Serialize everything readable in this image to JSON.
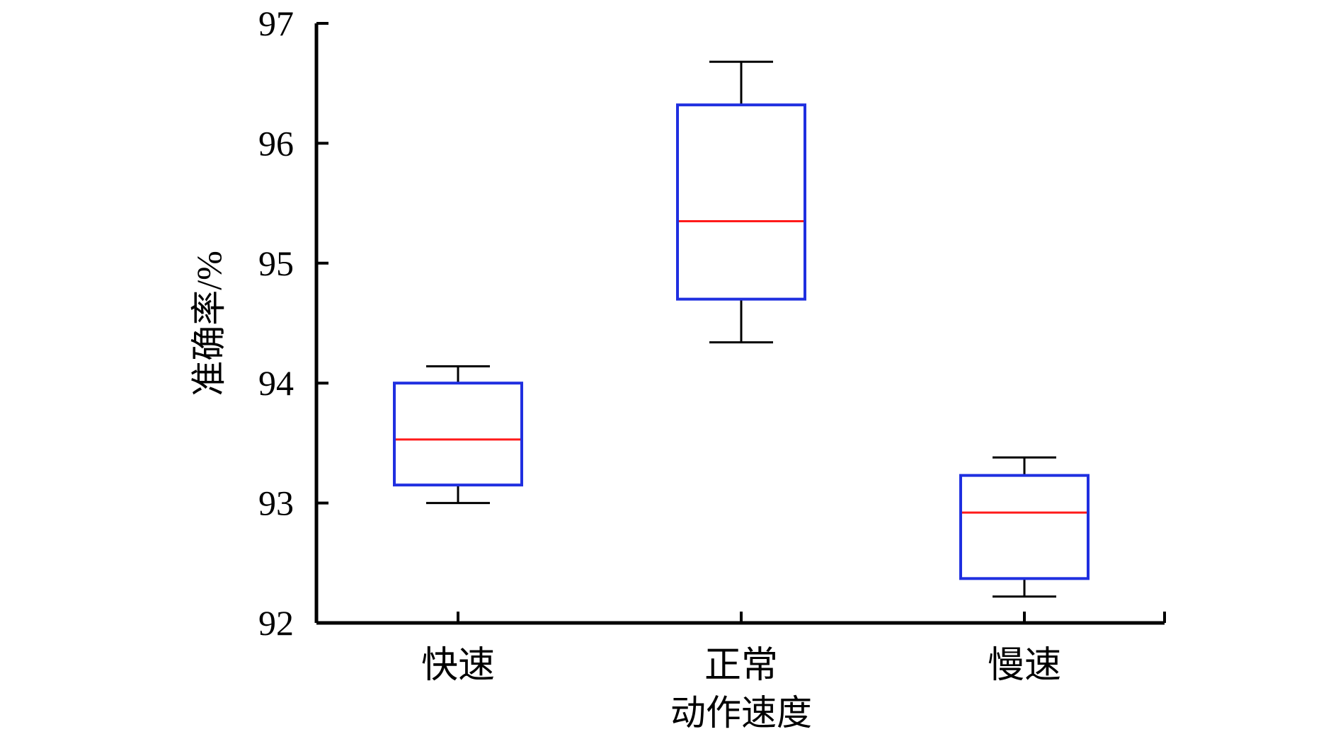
{
  "chart_data": {
    "type": "box",
    "xlabel": "动作速度",
    "ylabel": "准确率/%",
    "ylim": [
      92,
      97
    ],
    "yticks": [
      92,
      93,
      94,
      95,
      96,
      97
    ],
    "categories": [
      "快速",
      "正常",
      "慢速"
    ],
    "boxes": [
      {
        "category": "快速",
        "whisker_low": 93.0,
        "q1": 93.15,
        "median": 93.53,
        "q3": 94.0,
        "whisker_high": 94.14
      },
      {
        "category": "正常",
        "whisker_low": 94.34,
        "q1": 94.7,
        "median": 95.35,
        "q3": 96.32,
        "whisker_high": 96.68
      },
      {
        "category": "慢速",
        "whisker_low": 92.22,
        "q1": 92.37,
        "median": 92.92,
        "q3": 93.23,
        "whisker_high": 93.38
      }
    ],
    "grid": false,
    "colors": {
      "box": "#1f2fe0",
      "median": "#ff1a1a",
      "whisker": "#000000",
      "axis": "#000000"
    }
  }
}
